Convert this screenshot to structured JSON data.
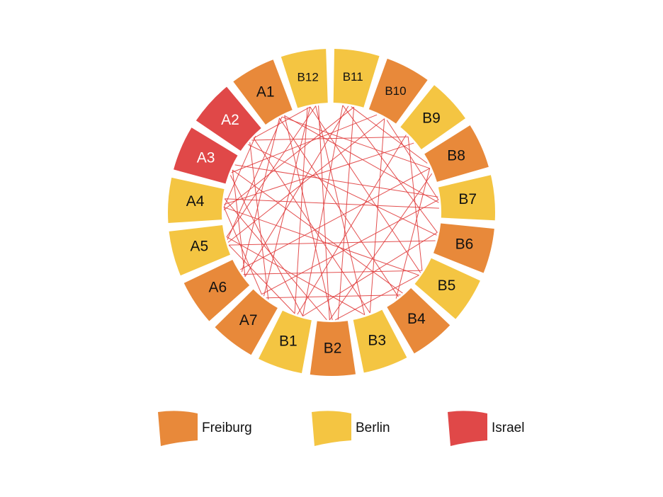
{
  "nodes": [
    {
      "label": "B11",
      "color": "#f4c542"
    },
    {
      "label": "B10",
      "color": "#e8893a"
    },
    {
      "label": "B9",
      "color": "#f4c542"
    },
    {
      "label": "B8",
      "color": "#e8893a"
    },
    {
      "label": "B7",
      "color": "#f4c542"
    },
    {
      "label": "B6",
      "color": "#e8893a"
    },
    {
      "label": "B5",
      "color": "#f4c542"
    },
    {
      "label": "B4",
      "color": "#e8893a"
    },
    {
      "label": "B3",
      "color": "#f4c542"
    },
    {
      "label": "B2",
      "color": "#e8893a"
    },
    {
      "label": "B1",
      "color": "#f4c542"
    },
    {
      "label": "A7",
      "color": "#e8893a"
    },
    {
      "label": "A6",
      "color": "#e8893a"
    },
    {
      "label": "A5",
      "color": "#f4c542"
    },
    {
      "label": "A4",
      "color": "#f4c542"
    },
    {
      "label": "A3",
      "color": "#e04848"
    },
    {
      "label": "A2",
      "color": "#e04848"
    },
    {
      "label": "A1",
      "color": "#e8893a"
    },
    {
      "label": "B12",
      "color": "#f4c542"
    }
  ],
  "legend": [
    {
      "label": "Freiburg",
      "color": "#e8893a"
    },
    {
      "label": "Berlin",
      "color": "#f4c542"
    },
    {
      "label": "Israel",
      "color": "#e04848"
    }
  ]
}
